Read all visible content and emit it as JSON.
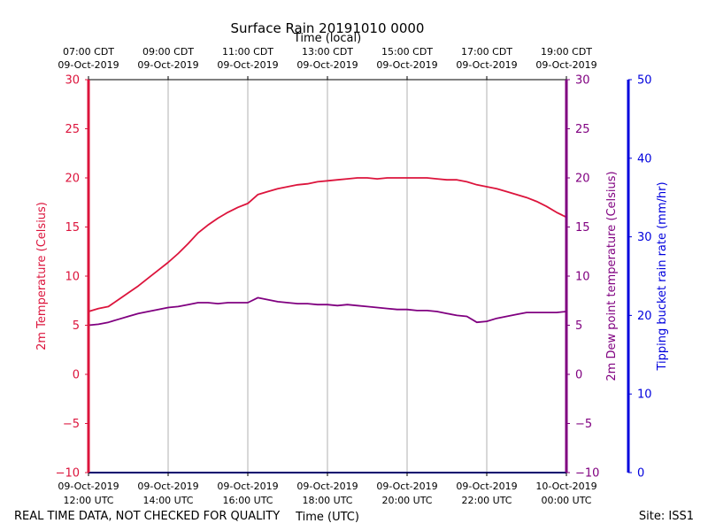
{
  "chart_data": {
    "type": "line",
    "title": "Surface Rain 20191010 0000",
    "top_xlabel": "Time (local)",
    "xlabel": "Time (UTC)",
    "footer_left": "REAL TIME DATA, NOT CHECKED FOR QUALITY",
    "footer_right": "Site: ISS1",
    "x_range_hours_utc": [
      12,
      24
    ],
    "x_ticks_hours_utc": [
      12,
      14,
      16,
      18,
      20,
      22,
      24
    ],
    "x_bottom_tick_labels": [
      [
        "09-Oct-2019",
        "12:00 UTC"
      ],
      [
        "09-Oct-2019",
        "14:00 UTC"
      ],
      [
        "09-Oct-2019",
        "16:00 UTC"
      ],
      [
        "09-Oct-2019",
        "18:00 UTC"
      ],
      [
        "09-Oct-2019",
        "20:00 UTC"
      ],
      [
        "09-Oct-2019",
        "22:00 UTC"
      ],
      [
        "10-Oct-2019",
        "00:00 UTC"
      ]
    ],
    "x_top_tick_labels": [
      [
        "07:00 CDT",
        "09-Oct-2019"
      ],
      [
        "09:00 CDT",
        "09-Oct-2019"
      ],
      [
        "11:00 CDT",
        "09-Oct-2019"
      ],
      [
        "13:00 CDT",
        "09-Oct-2019"
      ],
      [
        "15:00 CDT",
        "09-Oct-2019"
      ],
      [
        "17:00 CDT",
        "09-Oct-2019"
      ],
      [
        "19:00 CDT",
        "09-Oct-2019"
      ]
    ],
    "y_left": {
      "label": "2m Temperature (Celsius)",
      "range": [
        -10,
        30
      ],
      "ticks": [
        -10,
        -5,
        0,
        5,
        10,
        15,
        20,
        25,
        30
      ],
      "tick_labels": [
        "−10",
        "−5",
        "0",
        "5",
        "10",
        "15",
        "20",
        "25",
        "30"
      ],
      "color": "#dc143c"
    },
    "y_right1": {
      "label": "2m Dew point temperature (Celsius)",
      "range": [
        -10,
        30
      ],
      "ticks": [
        -10,
        -5,
        0,
        5,
        10,
        15,
        20,
        25,
        30
      ],
      "tick_labels": [
        "−10",
        "−5",
        "0",
        "5",
        "10",
        "15",
        "20",
        "25",
        "30"
      ],
      "color": "#800080"
    },
    "y_right2": {
      "label": "Tipping bucket rain rate (mm/hr)",
      "range": [
        0,
        50
      ],
      "ticks": [
        0,
        10,
        20,
        30,
        40,
        50
      ],
      "tick_labels": [
        "0",
        "10",
        "20",
        "30",
        "40",
        "50"
      ],
      "color": "#0000dd"
    },
    "grid": "vertical",
    "series": [
      {
        "name": "2m Temperature",
        "color": "#dc143c",
        "axis": "left",
        "x": [
          12.0,
          12.25,
          12.5,
          12.75,
          13.0,
          13.25,
          13.5,
          13.75,
          14.0,
          14.25,
          14.5,
          14.75,
          15.0,
          15.25,
          15.5,
          15.75,
          16.0,
          16.25,
          16.5,
          16.75,
          17.0,
          17.25,
          17.5,
          17.75,
          18.0,
          18.25,
          18.5,
          18.75,
          19.0,
          19.25,
          19.5,
          19.75,
          20.0,
          20.25,
          20.5,
          20.75,
          21.0,
          21.25,
          21.5,
          21.75,
          22.0,
          22.25,
          22.5,
          22.75,
          23.0,
          23.25,
          23.5,
          23.75,
          24.0
        ],
        "values": [
          6.4,
          6.7,
          6.9,
          7.6,
          8.3,
          9.0,
          9.8,
          10.6,
          11.4,
          12.3,
          13.3,
          14.4,
          15.2,
          15.9,
          16.5,
          17.0,
          17.4,
          18.3,
          18.6,
          18.9,
          19.1,
          19.3,
          19.4,
          19.6,
          19.7,
          19.8,
          19.9,
          20.0,
          20.0,
          19.9,
          20.0,
          20.0,
          20.0,
          20.0,
          20.0,
          19.9,
          19.8,
          19.8,
          19.6,
          19.3,
          19.1,
          18.9,
          18.6,
          18.3,
          18.0,
          17.6,
          17.1,
          16.5,
          16.0
        ]
      },
      {
        "name": "2m Dew point temperature",
        "color": "#800080",
        "axis": "right1",
        "x": [
          12.0,
          12.25,
          12.5,
          12.75,
          13.0,
          13.25,
          13.5,
          13.75,
          14.0,
          14.25,
          14.5,
          14.75,
          15.0,
          15.25,
          15.5,
          15.75,
          16.0,
          16.25,
          16.5,
          16.75,
          17.0,
          17.25,
          17.5,
          17.75,
          18.0,
          18.25,
          18.5,
          18.75,
          19.0,
          19.25,
          19.5,
          19.75,
          20.0,
          20.25,
          20.5,
          20.75,
          21.0,
          21.25,
          21.5,
          21.75,
          22.0,
          22.25,
          22.5,
          22.75,
          23.0,
          23.25,
          23.5,
          23.75,
          24.0
        ],
        "values": [
          5.0,
          5.1,
          5.3,
          5.6,
          5.9,
          6.2,
          6.4,
          6.6,
          6.8,
          6.9,
          7.1,
          7.3,
          7.3,
          7.2,
          7.3,
          7.3,
          7.3,
          7.8,
          7.6,
          7.4,
          7.3,
          7.2,
          7.2,
          7.1,
          7.1,
          7.0,
          7.1,
          7.0,
          6.9,
          6.8,
          6.7,
          6.6,
          6.6,
          6.5,
          6.5,
          6.4,
          6.2,
          6.0,
          5.9,
          5.3,
          5.4,
          5.7,
          5.9,
          6.1,
          6.3,
          6.3,
          6.3,
          6.3,
          6.4
        ]
      },
      {
        "name": "Tipping bucket rain rate",
        "color": "#0000dd",
        "axis": "right2",
        "x": [
          12.0,
          24.0
        ],
        "values": [
          0,
          0
        ]
      }
    ]
  }
}
